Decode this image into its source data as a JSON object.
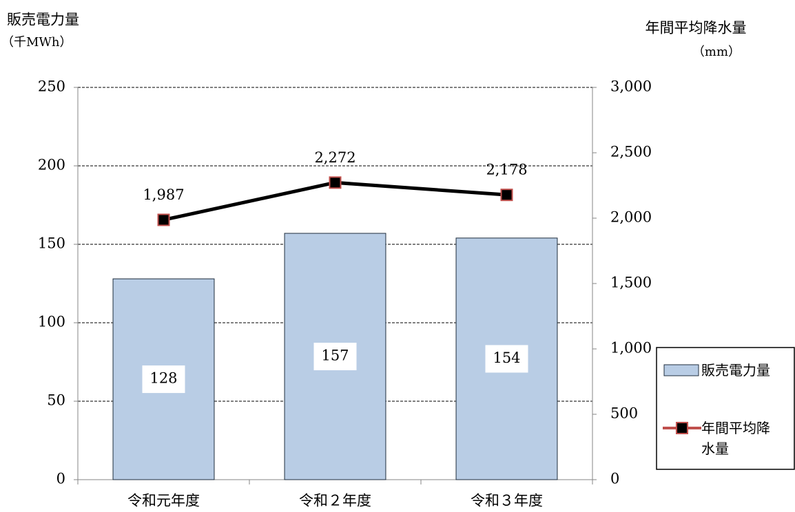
{
  "chart_data": {
    "type": "bar",
    "ylabel": [
      "販売電力量",
      "（千MWh）"
    ],
    "y2label": [
      "年間平均降水量",
      "（mm）"
    ],
    "categories": [
      "令和元年度",
      "令和２年度",
      "令和３年度"
    ],
    "series": [
      {
        "name": "販売電力量",
        "type": "bar",
        "color": "#b9cde5",
        "edge": "#1f2d3d",
        "values": [
          128,
          157,
          154
        ]
      },
      {
        "name": "年間平均降水量",
        "type": "line",
        "axis": "y2",
        "color": "#000000",
        "marker_edge": "#c0504d",
        "values": [
          1987,
          2272,
          2178
        ],
        "value_labels": [
          "1,987",
          "2,272",
          "2,178"
        ]
      }
    ],
    "ylim": [
      0,
      250
    ],
    "yticks": [
      0,
      50,
      100,
      150,
      200,
      250
    ],
    "y2lim": [
      0,
      3000
    ],
    "y2ticks": [
      0,
      500,
      {
        "value": 1000,
        "label": "1,000"
      },
      {
        "value": 1500,
        "label": "1,500"
      },
      {
        "value": 2000,
        "label": "2,000"
      },
      {
        "value": 2500,
        "label": "2,500"
      },
      {
        "value": 3000,
        "label": "3,000"
      }
    ],
    "grid": true,
    "legend": "right"
  }
}
